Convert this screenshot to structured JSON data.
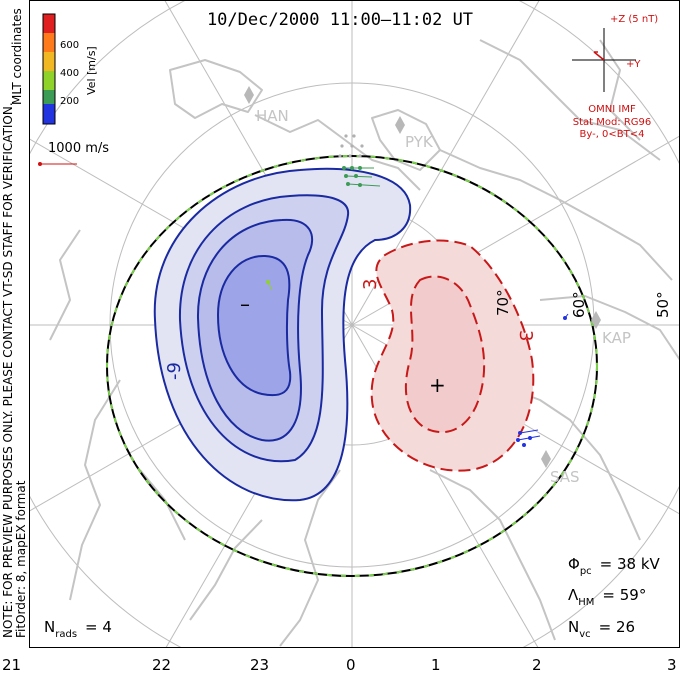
{
  "title": "10/Dec/2000 11:00–11:02 UT",
  "side_note": "NOTE: FOR PREVIEW PURPOSES ONLY. PLEASE CONTACT VT-SD STAFF FOR VERIFICATION.",
  "fit_order": "FitOrder: 8, mapEX format",
  "coordinates_label": "MLT coordinates",
  "colorbar": {
    "label": "Vel [m/s]",
    "ticks": [
      "600",
      "400",
      "200"
    ],
    "colors": [
      "#e02020",
      "#ff7a1a",
      "#f2b824",
      "#8fd32a",
      "#3c9c55",
      "#2233e0"
    ]
  },
  "velocity_key": "1000 m/s",
  "imf": {
    "z_label": "+Z (5 nT)",
    "y_label": "+Y",
    "source": "OMNI IMF",
    "model": "Stat Mod: RG96",
    "condition": "By-, 0<BT<4",
    "color": "#d01010"
  },
  "stations": [
    "HAN",
    "PYK",
    "KAP",
    "SAS"
  ],
  "latitude_labels": [
    "60°",
    "50°",
    "70°"
  ],
  "contours": {
    "negative_label": "-9",
    "positive_label_1": "3",
    "positive_label_2": "3",
    "negative_color": "#1a2aa0",
    "positive_color": "#c81818",
    "min_marker": "–",
    "max_marker": "+"
  },
  "stats": {
    "phi_pc_symbol": "Φ",
    "phi_pc_sub": "pc",
    "phi_pc_value": "= 38 kV",
    "lambda_symbol": "Λ",
    "lambda_sub": "HM",
    "lambda_value": "= 59°",
    "nvc_symbol": "N",
    "nvc_sub": "vc",
    "nvc_value": "= 26",
    "nrads_symbol": "N",
    "nrads_sub": "rads",
    "nrads_value": "= 4"
  },
  "mlt_ticks": [
    "21",
    "22",
    "23",
    "0",
    "1",
    "2",
    "3"
  ]
}
